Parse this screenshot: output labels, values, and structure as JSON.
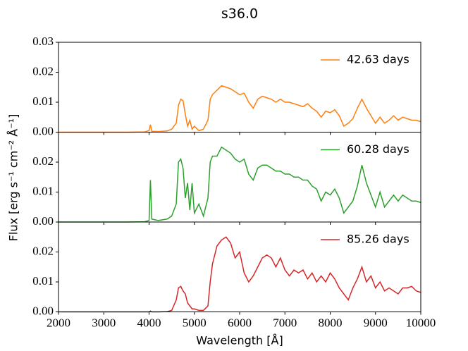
{
  "title": "s36.0",
  "xlabel": "Wavelength [Å]",
  "ylabel": "Flux [erg s⁻¹ cm⁻² Å⁻¹]",
  "chart_data": [
    {
      "type": "line",
      "xlim": [
        2000,
        10000
      ],
      "ylim": [
        0,
        0.03
      ],
      "yticks": [
        {
          "value": 0,
          "label": "0.00"
        },
        {
          "value": 0.01,
          "label": "0.01"
        },
        {
          "value": 0.02,
          "label": "0.02"
        },
        {
          "value": 0.03,
          "label": "0.03"
        }
      ],
      "x": [
        2000,
        2500,
        3000,
        3500,
        3900,
        4000,
        4030,
        4060,
        4200,
        4400,
        4500,
        4600,
        4650,
        4700,
        4750,
        4800,
        4850,
        4900,
        4950,
        5000,
        5100,
        5200,
        5300,
        5350,
        5400,
        5500,
        5600,
        5700,
        5800,
        5900,
        6000,
        6100,
        6200,
        6300,
        6400,
        6500,
        6600,
        6700,
        6800,
        6900,
        7000,
        7100,
        7200,
        7300,
        7400,
        7500,
        7600,
        7700,
        7800,
        7900,
        8000,
        8100,
        8200,
        8300,
        8400,
        8500,
        8600,
        8700,
        8800,
        8900,
        9000,
        9100,
        9200,
        9300,
        9400,
        9500,
        9600,
        9700,
        9800,
        9900,
        10000
      ],
      "series": [
        {
          "name": "42.63 days",
          "color": "#ff7f0e",
          "values": [
            0,
            0,
            0,
            0,
            0.0001,
            0.0005,
            0.0025,
            0.0003,
            0.0002,
            0.0004,
            0.001,
            0.003,
            0.009,
            0.011,
            0.0105,
            0.006,
            0.002,
            0.004,
            0.001,
            0.002,
            0.0005,
            0.001,
            0.004,
            0.011,
            0.0125,
            0.014,
            0.0155,
            0.015,
            0.0145,
            0.0135,
            0.0125,
            0.013,
            0.01,
            0.008,
            0.011,
            0.012,
            0.0115,
            0.011,
            0.01,
            0.011,
            0.01,
            0.01,
            0.0095,
            0.009,
            0.0085,
            0.0095,
            0.008,
            0.007,
            0.005,
            0.007,
            0.0065,
            0.0075,
            0.0055,
            0.002,
            0.003,
            0.0045,
            0.008,
            0.011,
            0.008,
            0.0055,
            0.003,
            0.005,
            0.003,
            0.004,
            0.0055,
            0.004,
            0.005,
            0.0045,
            0.004,
            0.004,
            0.0035
          ]
        }
      ]
    },
    {
      "type": "line",
      "xlim": [
        2000,
        10000
      ],
      "ylim": [
        0,
        0.03
      ],
      "yticks": [
        {
          "value": 0,
          "label": "0.00"
        },
        {
          "value": 0.01,
          "label": "0.01"
        },
        {
          "value": 0.02,
          "label": "0.02"
        }
      ],
      "x": [
        2000,
        2500,
        3000,
        3500,
        3900,
        4000,
        4030,
        4060,
        4200,
        4400,
        4500,
        4600,
        4650,
        4700,
        4750,
        4800,
        4850,
        4900,
        4950,
        5000,
        5100,
        5200,
        5300,
        5350,
        5400,
        5500,
        5600,
        5700,
        5800,
        5900,
        6000,
        6100,
        6200,
        6300,
        6400,
        6500,
        6600,
        6700,
        6800,
        6900,
        7000,
        7100,
        7200,
        7300,
        7400,
        7500,
        7600,
        7700,
        7800,
        7900,
        8000,
        8100,
        8200,
        8300,
        8400,
        8500,
        8600,
        8700,
        8800,
        8900,
        9000,
        9100,
        9200,
        9300,
        9400,
        9500,
        9600,
        9700,
        9800,
        9900,
        10000
      ],
      "series": [
        {
          "name": "60.28 days",
          "color": "#2ca02c",
          "values": [
            0,
            0,
            0,
            0,
            0.0001,
            0.0005,
            0.014,
            0.001,
            0.0005,
            0.001,
            0.002,
            0.006,
            0.02,
            0.021,
            0.018,
            0.008,
            0.013,
            0.004,
            0.013,
            0.003,
            0.006,
            0.002,
            0.008,
            0.02,
            0.022,
            0.022,
            0.025,
            0.024,
            0.023,
            0.021,
            0.02,
            0.021,
            0.016,
            0.014,
            0.018,
            0.019,
            0.019,
            0.018,
            0.017,
            0.017,
            0.016,
            0.016,
            0.015,
            0.015,
            0.014,
            0.014,
            0.012,
            0.011,
            0.007,
            0.01,
            0.009,
            0.011,
            0.008,
            0.003,
            0.005,
            0.007,
            0.012,
            0.019,
            0.013,
            0.009,
            0.005,
            0.01,
            0.005,
            0.007,
            0.009,
            0.007,
            0.009,
            0.008,
            0.007,
            0.007,
            0.0065
          ]
        }
      ]
    },
    {
      "type": "line",
      "xlim": [
        2000,
        10000
      ],
      "ylim": [
        0,
        0.03
      ],
      "yticks": [
        {
          "value": 0,
          "label": "0.00"
        },
        {
          "value": 0.01,
          "label": "0.01"
        },
        {
          "value": 0.02,
          "label": "0.02"
        }
      ],
      "xticks": [
        2000,
        3000,
        4000,
        5000,
        6000,
        7000,
        8000,
        9000,
        10000
      ],
      "x": [
        2000,
        2500,
        3000,
        3500,
        3900,
        4000,
        4030,
        4060,
        4200,
        4400,
        4500,
        4600,
        4650,
        4700,
        4750,
        4800,
        4850,
        4900,
        4950,
        5000,
        5100,
        5200,
        5300,
        5350,
        5400,
        5500,
        5600,
        5700,
        5800,
        5900,
        6000,
        6100,
        6200,
        6300,
        6400,
        6500,
        6600,
        6700,
        6800,
        6900,
        7000,
        7100,
        7200,
        7300,
        7400,
        7500,
        7600,
        7700,
        7800,
        7900,
        8000,
        8100,
        8200,
        8300,
        8400,
        8500,
        8600,
        8700,
        8800,
        8900,
        9000,
        9100,
        9200,
        9300,
        9400,
        9500,
        9600,
        9700,
        9800,
        9900,
        10000
      ],
      "series": [
        {
          "name": "85.26 days",
          "color": "#d62728",
          "values": [
            0,
            0,
            0,
            0,
            0,
            0,
            0.0003,
            0,
            0,
            0.0001,
            0.0005,
            0.004,
            0.008,
            0.0085,
            0.007,
            0.006,
            0.003,
            0.002,
            0.001,
            0.001,
            0.0005,
            0.0005,
            0.002,
            0.01,
            0.016,
            0.022,
            0.024,
            0.025,
            0.023,
            0.018,
            0.02,
            0.013,
            0.01,
            0.012,
            0.015,
            0.018,
            0.019,
            0.018,
            0.015,
            0.018,
            0.014,
            0.012,
            0.014,
            0.013,
            0.014,
            0.011,
            0.013,
            0.01,
            0.012,
            0.01,
            0.013,
            0.011,
            0.008,
            0.006,
            0.004,
            0.008,
            0.011,
            0.015,
            0.01,
            0.012,
            0.008,
            0.01,
            0.007,
            0.008,
            0.007,
            0.006,
            0.008,
            0.008,
            0.0085,
            0.007,
            0.0065
          ]
        }
      ]
    }
  ]
}
